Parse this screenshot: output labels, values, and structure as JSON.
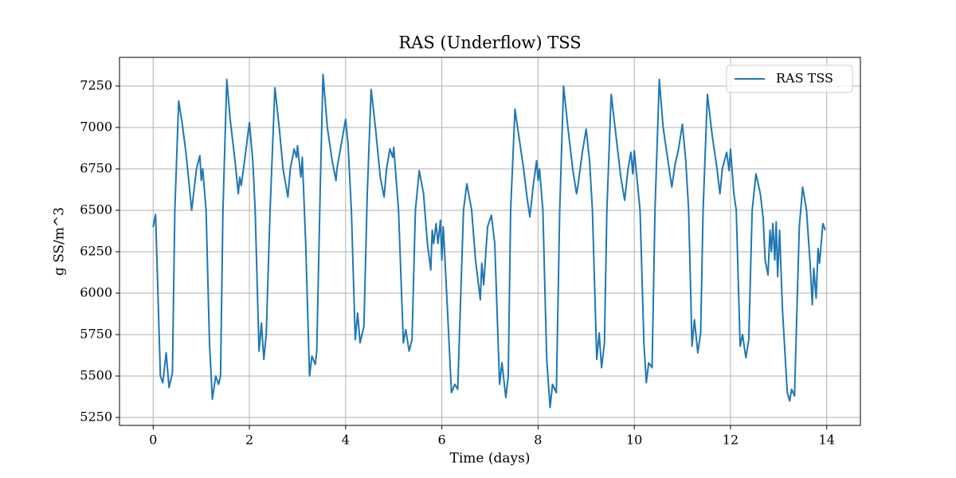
{
  "chart_data": {
    "type": "line",
    "title": "RAS (Underflow) TSS",
    "x_label": "Time (days)",
    "y_label": "g SS/m^3",
    "x": [
      0,
      0.05,
      0.15,
      0.2,
      0.27,
      0.33,
      0.4,
      0.45,
      0.53,
      0.6,
      0.68,
      0.75,
      0.8,
      0.9,
      0.97,
      1.0,
      1.03,
      1.1,
      1.17,
      1.23,
      1.3,
      1.36,
      1.4,
      1.45,
      1.53,
      1.6,
      1.7,
      1.77,
      1.8,
      1.83,
      1.9,
      2.0,
      2.07,
      2.12,
      2.2,
      2.25,
      2.3,
      2.35,
      2.43,
      2.53,
      2.62,
      2.7,
      2.8,
      2.85,
      2.93,
      2.98,
      3.0,
      3.07,
      3.1,
      3.17,
      3.25,
      3.3,
      3.37,
      3.4,
      3.47,
      3.53,
      3.62,
      3.72,
      3.8,
      3.82,
      4.0,
      4.05,
      4.12,
      4.2,
      4.25,
      4.3,
      4.38,
      4.45,
      4.53,
      4.62,
      4.72,
      4.8,
      4.85,
      4.92,
      4.98,
      5.0,
      5.1,
      5.2,
      5.25,
      5.32,
      5.38,
      5.45,
      5.53,
      5.62,
      5.7,
      5.77,
      5.8,
      5.83,
      5.88,
      5.92,
      5.97,
      6.0,
      6.03,
      6.1,
      6.2,
      6.27,
      6.33,
      6.45,
      6.52,
      6.62,
      6.7,
      6.8,
      6.83,
      6.87,
      6.95,
      7.03,
      7.1,
      7.2,
      7.25,
      7.33,
      7.38,
      7.43,
      7.52,
      7.6,
      7.7,
      7.77,
      7.83,
      7.9,
      7.97,
      8.0,
      8.03,
      8.1,
      8.18,
      8.25,
      8.3,
      8.38,
      8.45,
      8.53,
      8.62,
      8.72,
      8.8,
      8.83,
      8.92,
      9.0,
      9.07,
      9.13,
      9.22,
      9.27,
      9.32,
      9.38,
      9.43,
      9.52,
      9.62,
      9.72,
      9.8,
      9.87,
      9.93,
      9.97,
      10.0,
      10.07,
      10.12,
      10.2,
      10.25,
      10.3,
      10.37,
      10.43,
      10.52,
      10.6,
      10.7,
      10.78,
      10.85,
      10.92,
      11.0,
      11.07,
      11.13,
      11.2,
      11.25,
      11.32,
      11.38,
      11.43,
      11.52,
      11.62,
      11.72,
      11.78,
      11.83,
      11.92,
      11.97,
      12.0,
      12.07,
      12.12,
      12.2,
      12.25,
      12.32,
      12.38,
      12.45,
      12.53,
      12.62,
      12.68,
      12.72,
      12.78,
      12.82,
      12.85,
      12.88,
      12.92,
      12.95,
      12.98,
      13.02,
      13.08,
      13.18,
      13.23,
      13.27,
      13.33,
      13.43,
      13.5,
      13.58,
      13.65,
      13.7,
      13.73,
      13.78,
      13.82,
      13.85,
      13.92,
      13.97
    ],
    "series": [
      {
        "name": "RAS TSS",
        "color": "#1f77b4",
        "values": [
          6400,
          6475,
          5500,
          5460,
          5640,
          5430,
          5520,
          6500,
          7160,
          7030,
          6850,
          6650,
          6500,
          6750,
          6830,
          6680,
          6750,
          6500,
          5700,
          5360,
          5500,
          5450,
          5500,
          6500,
          7290,
          7050,
          6800,
          6600,
          6700,
          6650,
          6800,
          7030,
          6800,
          6500,
          5650,
          5820,
          5600,
          5750,
          6500,
          7240,
          7000,
          6750,
          6580,
          6750,
          6870,
          6820,
          6890,
          6700,
          6820,
          6300,
          5500,
          5620,
          5570,
          5650,
          6600,
          7320,
          7000,
          6800,
          6680,
          6750,
          7050,
          6900,
          6500,
          5720,
          5880,
          5700,
          5800,
          6600,
          7230,
          7000,
          6700,
          6580,
          6750,
          6870,
          6820,
          6880,
          6500,
          5700,
          5780,
          5650,
          5720,
          6500,
          6740,
          6600,
          6300,
          6140,
          6380,
          6300,
          6420,
          6300,
          6440,
          6200,
          6400,
          6000,
          5400,
          5450,
          5420,
          6500,
          6660,
          6500,
          6200,
          5960,
          6180,
          6050,
          6400,
          6470,
          6300,
          5450,
          5580,
          5370,
          5500,
          6500,
          7110,
          6950,
          6750,
          6580,
          6460,
          6650,
          6800,
          6680,
          6750,
          6500,
          5600,
          5310,
          5450,
          5400,
          6500,
          7250,
          7000,
          6750,
          6600,
          6650,
          6850,
          6990,
          6800,
          6500,
          5600,
          5760,
          5550,
          5700,
          6500,
          7200,
          6950,
          6700,
          6560,
          6750,
          6850,
          6720,
          6860,
          6650,
          6500,
          5700,
          5460,
          5580,
          5550,
          6500,
          7290,
          7000,
          6800,
          6640,
          6780,
          6870,
          7020,
          6800,
          6500,
          5680,
          5840,
          5640,
          5760,
          6500,
          7200,
          6950,
          6750,
          6600,
          6750,
          6850,
          6740,
          6870,
          6600,
          6500,
          5680,
          5750,
          5610,
          5720,
          6500,
          6720,
          6600,
          6450,
          6200,
          6110,
          6380,
          6250,
          6420,
          6200,
          6430,
          6100,
          6380,
          5900,
          5400,
          5350,
          5420,
          5380,
          6400,
          6640,
          6500,
          6200,
          5930,
          6150,
          5970,
          6270,
          6180,
          6420,
          6380
        ]
      }
    ],
    "xlim": [
      -0.7,
      14.7
    ],
    "ylim": [
      5202,
      7423
    ],
    "xticks": [
      0,
      2,
      4,
      6,
      8,
      10,
      12,
      14
    ],
    "yticks": [
      5250,
      5500,
      5750,
      6000,
      6250,
      6500,
      6750,
      7000,
      7250
    ],
    "grid": true,
    "legend": "upper right"
  }
}
